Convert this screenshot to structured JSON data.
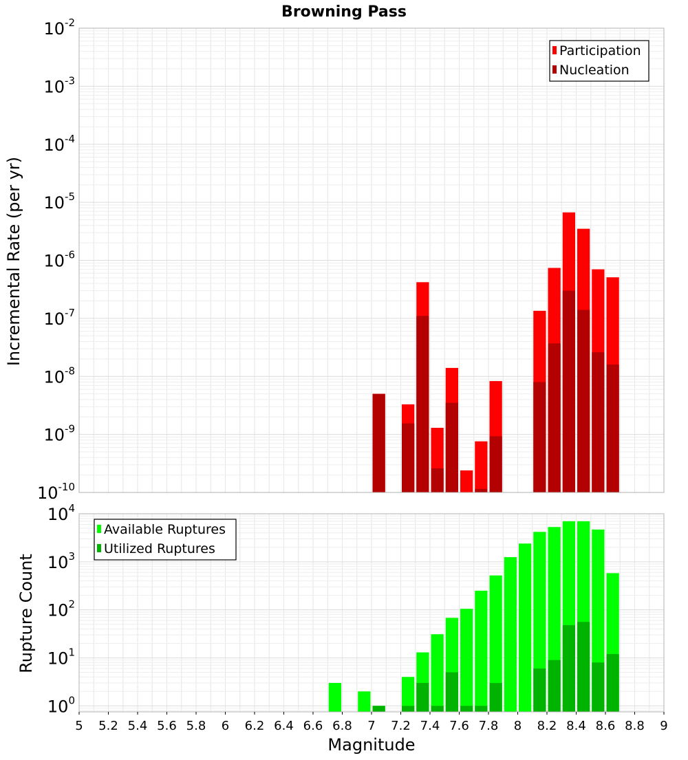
{
  "chart_data": [
    {
      "type": "bar",
      "title": "Browning Pass",
      "ylabel": "Incremental Rate (per yr)",
      "xlabel": "",
      "yscale": "log",
      "ylim": [
        1e-10,
        0.01
      ],
      "xlim": [
        5,
        9
      ],
      "bar_width": 0.1,
      "grid": true,
      "legend_position": "top-right",
      "y_tick_exponents": [
        "-10",
        "-9",
        "-8",
        "-7",
        "-6",
        "-5",
        "-4",
        "-3",
        "-2"
      ],
      "series": [
        {
          "name": "Participation",
          "color": "#ff0000",
          "x": [
            7.05,
            7.25,
            7.35,
            7.45,
            7.55,
            7.65,
            7.75,
            7.85,
            8.15,
            8.25,
            8.35,
            8.45,
            8.55,
            8.65
          ],
          "values": [
            5e-09,
            3.3e-09,
            4.2e-07,
            1.3e-09,
            1.4e-08,
            2.4e-10,
            7.6e-10,
            8.3e-09,
            1.35e-07,
            7.4e-07,
            6.7e-06,
            3.5e-06,
            7e-07,
            5.1e-07
          ]
        },
        {
          "name": "Nucleation",
          "color": "#b30000",
          "x": [
            7.05,
            7.25,
            7.35,
            7.45,
            7.55,
            7.75,
            7.85,
            8.15,
            8.25,
            8.35,
            8.45,
            8.55,
            8.65
          ],
          "values": [
            5e-09,
            1.55e-09,
            1.1e-07,
            2.6e-10,
            3.5e-09,
            1.15e-10,
            9.3e-10,
            8e-09,
            3.7e-08,
            3e-07,
            1.4e-07,
            2.6e-08,
            1.6e-08
          ]
        }
      ]
    },
    {
      "type": "bar",
      "title": "",
      "ylabel": "Rupture Count",
      "xlabel": "Magnitude",
      "yscale": "log",
      "ylim": [
        0.75,
        10000
      ],
      "xlim": [
        5,
        9
      ],
      "bar_width": 0.1,
      "grid": true,
      "legend_position": "top-left",
      "x_tick_labels": [
        "5",
        "5.2",
        "5.4",
        "5.6",
        "5.8",
        "6",
        "6.2",
        "6.4",
        "6.6",
        "6.8",
        "7",
        "7.2",
        "7.4",
        "7.6",
        "7.8",
        "8",
        "8.2",
        "8.4",
        "8.6",
        "8.8",
        "9"
      ],
      "y_tick_exponents": [
        "0",
        "1",
        "2",
        "3",
        "4"
      ],
      "series": [
        {
          "name": "Available Ruptures",
          "color": "#00ff00",
          "x": [
            6.75,
            6.95,
            7.05,
            7.25,
            7.35,
            7.45,
            7.55,
            7.65,
            7.75,
            7.85,
            7.95,
            8.05,
            8.15,
            8.25,
            8.35,
            8.45,
            8.55,
            8.65
          ],
          "values": [
            3,
            2,
            1,
            4,
            13,
            31,
            68,
            105,
            250,
            520,
            1250,
            2400,
            4200,
            5300,
            7000,
            7000,
            4700,
            580
          ]
        },
        {
          "name": "Utilized Ruptures",
          "color": "#00b300",
          "x": [
            7.05,
            7.25,
            7.35,
            7.45,
            7.55,
            7.65,
            7.75,
            7.85,
            8.15,
            8.25,
            8.35,
            8.45,
            8.55,
            8.65
          ],
          "values": [
            1,
            1,
            3,
            1,
            5,
            1,
            1,
            3,
            6,
            9,
            48,
            56,
            8,
            12
          ]
        }
      ]
    }
  ]
}
